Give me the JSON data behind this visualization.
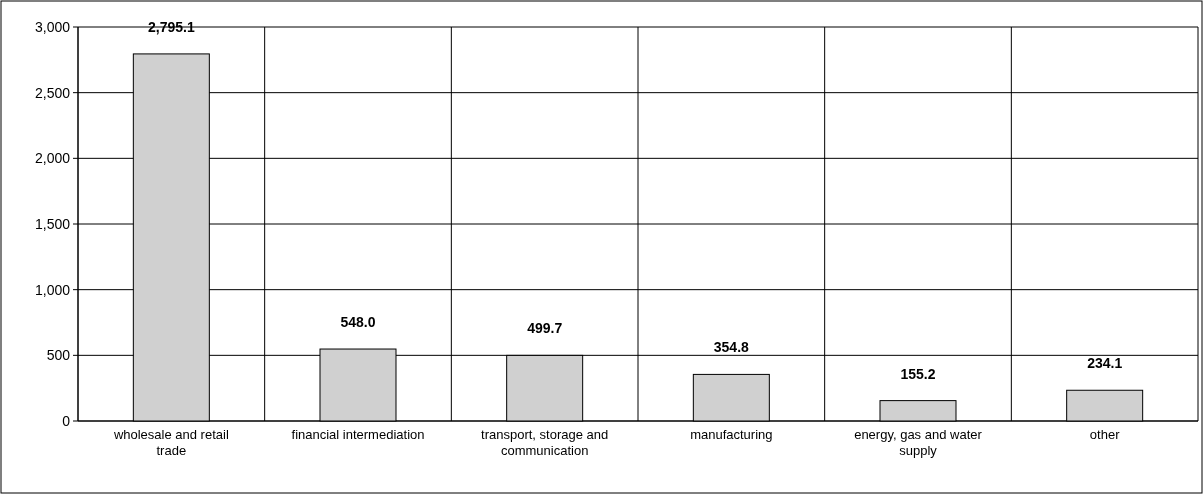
{
  "chart_data": {
    "type": "bar",
    "categories": [
      "wholesale and retail trade",
      "financial intermediation",
      "transport, storage and communication",
      "manufacturing",
      "energy, gas and water supply",
      "other"
    ],
    "values": [
      2795.1,
      548.0,
      499.7,
      354.8,
      155.2,
      234.1
    ],
    "value_labels": [
      "2,795.1",
      "548.0",
      "499.7",
      "354.8",
      "155.2",
      "234.1"
    ],
    "color": "#d0d0d0",
    "ylim": [
      0,
      3000
    ],
    "yticks": [
      {
        "value": 0,
        "label": "0"
      },
      {
        "value": 500,
        "label": "500"
      },
      {
        "value": 1000,
        "label": "1,000"
      },
      {
        "value": 1500,
        "label": "1,500"
      },
      {
        "value": 2000,
        "label": "2,000"
      },
      {
        "value": 2500,
        "label": "2,500"
      },
      {
        "value": 3000,
        "label": "3,000"
      }
    ],
    "grid": true
  }
}
